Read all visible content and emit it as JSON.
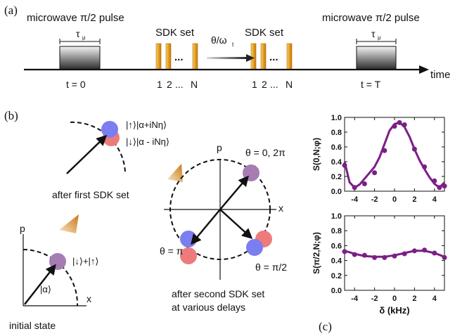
{
  "panel_labels": {
    "a": "(a)",
    "b": "(b)",
    "c": "(c)"
  },
  "timeline": {
    "pulse_label": "microwave π/2 pulse",
    "tau_label": "τ",
    "tau_sub": "μ",
    "sdk_label": "SDK set",
    "delay_label": "θ/ω",
    "delay_sub": "t",
    "axis_label": "time",
    "t0_label": "t = 0",
    "tT_label": "t = T",
    "pulse_index_labels": [
      "1",
      "2",
      "...",
      "N"
    ]
  },
  "phase_space": {
    "initial_state": {
      "state_label": "|↓⟩+|↑⟩",
      "alpha_label": "|α⟩",
      "p_axis": "p",
      "x_axis": "x",
      "caption": "initial state"
    },
    "after_first": {
      "up_label": "|↑⟩|α+iNη⟩",
      "down_label": "|↓⟩|α - iNη⟩",
      "caption": "after first SDK set"
    },
    "after_second": {
      "p_axis": "p",
      "x_axis": "x",
      "theta_0": "θ = 0, 2π",
      "theta_pi": "θ = π",
      "theta_pi2": "θ = π/2",
      "caption_line1": "after second SDK set",
      "caption_line2": "at various delays"
    }
  },
  "colors": {
    "purple_state": "#a57db3",
    "blue_state": "#7b7ef0",
    "red_state": "#ee7b7b",
    "curve": "#7b1f86",
    "sdk_pulse": "#f0b030",
    "arrow_orange": "#d98a20"
  },
  "chart_data": [
    {
      "type": "line",
      "ylabel": "S(0,N;φ)",
      "xlabel": "δ (kHz)",
      "xlim": [
        -5,
        5
      ],
      "ylim": [
        0,
        1.0
      ],
      "xticks": [
        "-4",
        "-2",
        "0",
        "2",
        "4"
      ],
      "yticks": [
        "0.0",
        "0.2",
        "0.4",
        "0.6",
        "0.8",
        "1.0"
      ],
      "points": {
        "x": [
          -5.0,
          -4.0,
          -3.0,
          -2.0,
          -1.0,
          0.0,
          0.5,
          1.0,
          2.0,
          3.0,
          4.0,
          4.5,
          5.0
        ],
        "y": [
          0.35,
          0.05,
          0.1,
          0.25,
          0.55,
          0.88,
          0.93,
          0.9,
          0.57,
          0.33,
          0.14,
          0.05,
          0.07
        ]
      },
      "fit": {
        "x": [
          -5.0,
          -4.5,
          -4.0,
          -3.5,
          -3.0,
          -2.5,
          -2.0,
          -1.5,
          -1.0,
          -0.5,
          0.0,
          0.5,
          1.0,
          1.5,
          2.0,
          2.5,
          3.0,
          3.5,
          4.0,
          4.5,
          5.0
        ],
        "y": [
          0.4,
          0.12,
          0.05,
          0.09,
          0.17,
          0.25,
          0.33,
          0.46,
          0.64,
          0.82,
          0.91,
          0.93,
          0.87,
          0.74,
          0.57,
          0.42,
          0.3,
          0.19,
          0.1,
          0.05,
          0.12
        ]
      }
    },
    {
      "type": "line",
      "ylabel": "S(π/2,N;φ)",
      "xlabel": "δ (kHz)",
      "xlim": [
        -5,
        5
      ],
      "ylim": [
        0,
        1.0
      ],
      "xticks": [
        "-4",
        "-2",
        "0",
        "2",
        "4"
      ],
      "yticks": [
        "0.0",
        "0.2",
        "0.4",
        "0.6",
        "0.8",
        "1.0"
      ],
      "points": {
        "x": [
          -5.0,
          -4.0,
          -3.0,
          -2.0,
          -1.0,
          0.0,
          1.0,
          2.0,
          3.0,
          4.0,
          5.0
        ],
        "y": [
          0.52,
          0.48,
          0.47,
          0.44,
          0.44,
          0.46,
          0.49,
          0.53,
          0.54,
          0.5,
          0.44
        ]
      },
      "fit": {
        "x": [
          -5.0,
          -4.0,
          -3.0,
          -2.0,
          -1.0,
          0.0,
          1.0,
          2.0,
          3.0,
          4.0,
          5.0
        ],
        "y": [
          0.53,
          0.49,
          0.46,
          0.45,
          0.45,
          0.47,
          0.5,
          0.53,
          0.53,
          0.5,
          0.45
        ]
      }
    }
  ]
}
